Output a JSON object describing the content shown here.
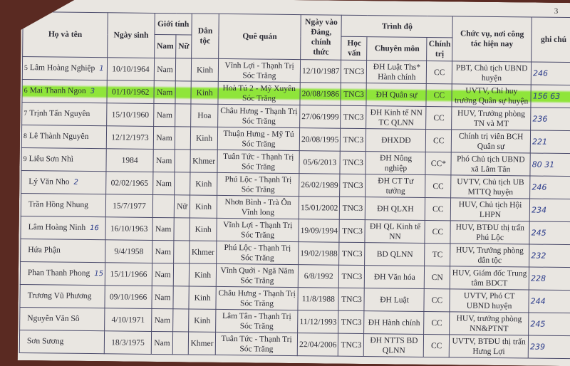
{
  "page_number": "3",
  "headers": {
    "name": "Họ và tên",
    "dob": "Ngày sinh",
    "gender": "Giới tính",
    "male": "Nam",
    "female": "Nữ",
    "ethnicity": "Dân tộc",
    "hometown": "Quê quán",
    "party_date": "Ngày vào Đảng, chính thức",
    "education": "Trình độ",
    "general": "Học vấn",
    "specialty": "Chuyên môn",
    "political": "Chính trị",
    "position": "Chức vụ, nơi công tác hiện nay",
    "note": "ghi chú"
  },
  "highlight_color": "#8fe53a",
  "rows": [
    {
      "stt": "5",
      "name": "Lâm Hoàng Nghiệp",
      "mark": "1",
      "dob": "10/10/1964",
      "male": "Nam",
      "female": "",
      "ethnicity": "Kinh",
      "hometown": "Vĩnh Lợi - Thạnh Trị Sóc Trăng",
      "party_date": "12/10/1987",
      "general": "TNC3",
      "specialty": "ĐH Luật Ths* Hành chính",
      "political": "CC",
      "position": "PBT, Chủ tịch UBND huyện",
      "note": "246",
      "highlight": false
    },
    {
      "stt": "6",
      "name": "Mai Thanh Ngon",
      "mark": "3",
      "dob": "01/10/1962",
      "male": "Nam",
      "female": "",
      "ethnicity": "Kinh",
      "hometown": "Hoà Tú 2 - Mỹ Xuyên Sóc Trăng",
      "party_date": "20/08/1986",
      "general": "TNC3",
      "specialty": "ĐH Quân sự",
      "political": "CC",
      "position": "UVTV, Chỉ huy trưởng Quân sự huyện",
      "note": "156  63",
      "highlight": true
    },
    {
      "stt": "7",
      "name": "Trịnh Tấn Nguyên",
      "mark": "",
      "dob": "15/10/1960",
      "male": "Nam",
      "female": "",
      "ethnicity": "Hoa",
      "hometown": "Châu Hưng - Thạnh Trị Sóc Trăng",
      "party_date": "27/06/1999",
      "general": "TNC3",
      "specialty": "ĐH Kinh tế NN TC QLNN",
      "political": "CC",
      "position": "HUV, Trưởng phòng TN và MT",
      "note": "236",
      "highlight": false
    },
    {
      "stt": "8",
      "name": "Lê Thành Nguyên",
      "mark": "",
      "dob": "12/12/1973",
      "male": "Nam",
      "female": "",
      "ethnicity": "Kinh",
      "hometown": "Thuận Hưng - Mỹ Tú Sóc Trăng",
      "party_date": "20/08/1995",
      "general": "TNC3",
      "specialty": "ĐHXDĐ",
      "political": "CC",
      "position": "Chính trị viên BCH Quân sự",
      "note": "221",
      "highlight": false
    },
    {
      "stt": "9",
      "name": "Liêu Sơn Nhì",
      "mark": "",
      "dob": "1984",
      "male": "Nam",
      "female": "",
      "ethnicity": "Khmer",
      "hometown": "Tuân Tức - Thạnh Trị Sóc Trăng",
      "party_date": "05/6/2013",
      "general": "TNC3",
      "specialty": "ĐH Nông nghiệp",
      "political": "CC*",
      "position": "Phó Chủ tịch UBND xã Lâm Tân",
      "note": "80  31",
      "highlight": false
    },
    {
      "stt": "",
      "name": "Lý Văn Nho",
      "mark": "2",
      "dob": "02/02/1965",
      "male": "Nam",
      "female": "",
      "ethnicity": "Kinh",
      "hometown": "Phú Lộc - Thạnh Trị Sóc Trăng",
      "party_date": "26/02/1989",
      "general": "TNC3",
      "specialty": "ĐH CT Tư tưởng",
      "political": "CC",
      "position": "UVTV, Chủ tịch UB MTTQ huyện",
      "note": "246",
      "highlight": false
    },
    {
      "stt": "",
      "name": "Trần Hồng Nhung",
      "mark": "",
      "dob": "15/7/1977",
      "male": "",
      "female": "Nữ",
      "ethnicity": "Kinh",
      "hometown": "Nhơn Bình - Trà Ôn Vĩnh long",
      "party_date": "15/01/2002",
      "general": "TNC3",
      "specialty": "ĐH QLXH",
      "political": "CC",
      "position": "HUV, Chủ tịch Hội LHPN",
      "note": "234",
      "highlight": false
    },
    {
      "stt": "",
      "name": "Lâm Hoàng Ninh",
      "mark": "16",
      "dob": "16/10/1963",
      "male": "Nam",
      "female": "",
      "ethnicity": "Kinh",
      "hometown": "Vĩnh Lợi - Thạnh Trị Sóc Trăng",
      "party_date": "19/09/1994",
      "general": "TNC3",
      "specialty": "ĐH QL Kinh tế NN",
      "political": "CC",
      "position": "HUV, BTĐU thị trấn Phú Lộc",
      "note": "245",
      "highlight": false
    },
    {
      "stt": "",
      "name": "Hứa Phận",
      "mark": "",
      "dob": "9/4/1958",
      "male": "Nam",
      "female": "",
      "ethnicity": "Khmer",
      "hometown": "Phú Lộc - Thạnh Trị Sóc Trăng",
      "party_date": "19/02/1988",
      "general": "TNC3",
      "specialty": "BD QLNN",
      "political": "TC",
      "position": "HUV, Trưởng phòng dân tộc",
      "note": "232",
      "highlight": false
    },
    {
      "stt": "",
      "name": "Phan Thanh Phong",
      "mark": "15",
      "dob": "15/11/1966",
      "male": "Nam",
      "female": "",
      "ethnicity": "Kinh",
      "hometown": "Vĩnh Quới - Ngã Năm Sóc Trăng",
      "party_date": "6/8/1992",
      "general": "TNC3",
      "specialty": "ĐH Văn hóa",
      "political": "CN",
      "position": "HUV, Giám đốc Trung tâm BDCT",
      "note": "228",
      "highlight": false
    },
    {
      "stt": "",
      "name": "Trương Vũ Phương",
      "mark": "",
      "dob": "09/10/1966",
      "male": "Nam",
      "female": "",
      "ethnicity": "Kinh",
      "hometown": "Châu Hưng - Thạnh Trị Sóc Trăng",
      "party_date": "11/8/1988",
      "general": "TNC3",
      "specialty": "ĐH Luật",
      "political": "CC",
      "position": "UVTV, Phó CT UBND huyện",
      "note": "244",
      "highlight": false
    },
    {
      "stt": "",
      "name": "Nguyễn Văn Sô",
      "mark": "",
      "dob": "4/10/1971",
      "male": "Nam",
      "female": "",
      "ethnicity": "Kinh",
      "hometown": "Lâm Tân - Thạnh Trị Sóc Trăng",
      "party_date": "11/12/1993",
      "general": "TNC3",
      "specialty": "ĐH Hành chính",
      "political": "CC",
      "position": "HUV, trưởng phòng NN&PTNT",
      "note": "245",
      "highlight": false
    },
    {
      "stt": "",
      "name": "Sơn Sương",
      "mark": "",
      "dob": "18/3/1975",
      "male": "Nam",
      "female": "",
      "ethnicity": "Khmer",
      "hometown": "Tuân Tức - Thạnh Trị Sóc Trăng",
      "party_date": "22/04/2006",
      "general": "TNC3",
      "specialty": "ĐH NTTS BD QLNN",
      "political": "CC",
      "position": "UVTV, BTĐU thị trấn Hưng Lợi",
      "note": "239",
      "highlight": false
    }
  ]
}
